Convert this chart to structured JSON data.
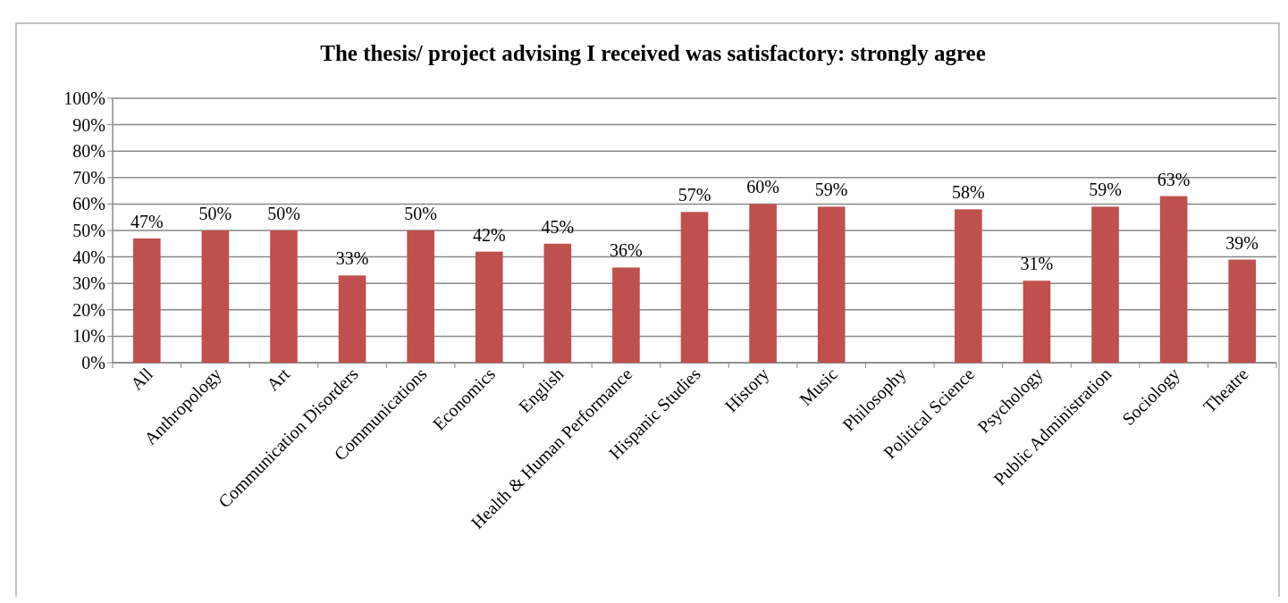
{
  "chart_data": {
    "type": "bar",
    "title": "The thesis/ project advising I received was satisfactory: strongly agree",
    "categories": [
      "All",
      "Anthropology",
      "Art",
      "Communication Disorders",
      "Communications",
      "Economics",
      "English",
      "Health & Human Performance",
      "Hispanic Studies",
      "History",
      "Music",
      "Philosophy",
      "Political Science",
      "Psychology",
      "Public Administration",
      "Sociology",
      "Theatre"
    ],
    "values": [
      47,
      50,
      50,
      33,
      50,
      42,
      45,
      36,
      57,
      60,
      59,
      null,
      58,
      31,
      59,
      63,
      39
    ],
    "value_labels": [
      "47%",
      "50%",
      "50%",
      "33%",
      "50%",
      "42%",
      "45%",
      "36%",
      "57%",
      "60%",
      "59%",
      null,
      "58%",
      "31%",
      "59%",
      "63%",
      "39%"
    ],
    "color": "#c0504d",
    "ylim": [
      0,
      100
    ],
    "yticks": [
      {
        "value": 0,
        "label": "0%"
      },
      {
        "value": 10,
        "label": "10%"
      },
      {
        "value": 20,
        "label": "20%"
      },
      {
        "value": 30,
        "label": "30%"
      },
      {
        "value": 40,
        "label": "40%"
      },
      {
        "value": 50,
        "label": "50%"
      },
      {
        "value": 60,
        "label": "60%"
      },
      {
        "value": 70,
        "label": "70%"
      },
      {
        "value": 80,
        "label": "80%"
      },
      {
        "value": 90,
        "label": "90%"
      },
      {
        "value": 100,
        "label": "100%"
      }
    ],
    "grid": "y"
  }
}
